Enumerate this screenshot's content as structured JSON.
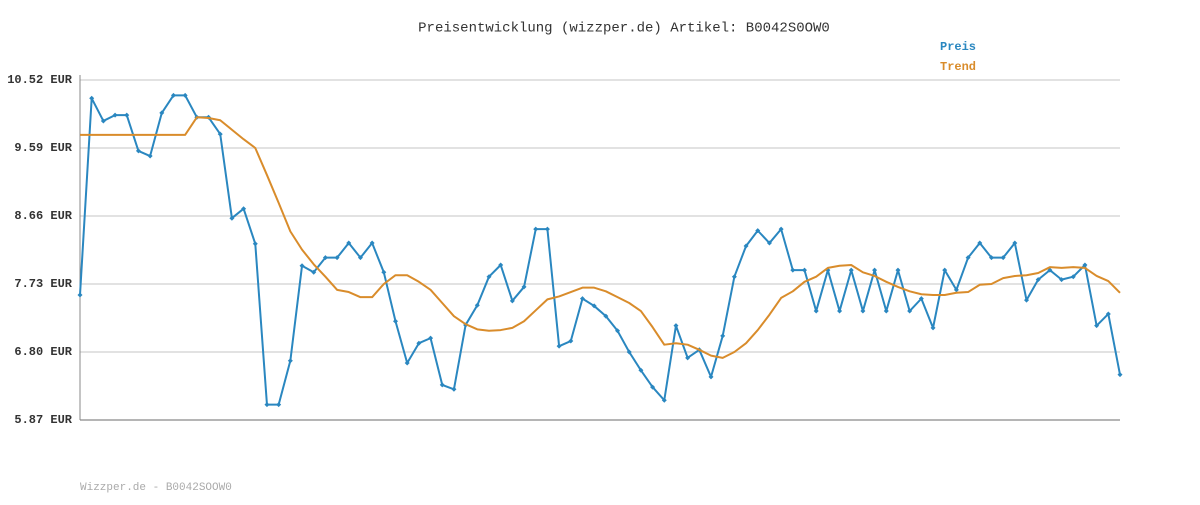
{
  "chart_data": {
    "type": "line",
    "title": "Preisentwicklung (wizzper.de) Artikel: B0042S0OW0",
    "categories": [
      null,
      null,
      null,
      null,
      null,
      null,
      null,
      null,
      null,
      null,
      null,
      null,
      null,
      null,
      null,
      null,
      null,
      null,
      null,
      null,
      null,
      null,
      null,
      null,
      null,
      null,
      null,
      null,
      null,
      null,
      null,
      null,
      null,
      null,
      null,
      null,
      null,
      null,
      null,
      null,
      null,
      null,
      null,
      null,
      null,
      null,
      null,
      null,
      null,
      null,
      null,
      null,
      null,
      null,
      null,
      null,
      null,
      null,
      null,
      null,
      null,
      null,
      null,
      null,
      null,
      null,
      null,
      null,
      null,
      null,
      null,
      null,
      null,
      null,
      null,
      null,
      null,
      null,
      null,
      null,
      null,
      null,
      null,
      null,
      null,
      null,
      null,
      null,
      null,
      null
    ],
    "series": [
      {
        "name": "Preis",
        "color": "#2a87c0",
        "markers": true,
        "values": [
          7.58,
          10.27,
          9.96,
          10.04,
          10.04,
          9.55,
          9.48,
          10.07,
          10.31,
          10.31,
          10.01,
          10.01,
          9.78,
          8.63,
          8.76,
          8.28,
          6.08,
          6.08,
          6.68,
          7.98,
          7.89,
          8.09,
          8.09,
          8.29,
          8.09,
          8.29,
          7.89,
          7.22,
          6.65,
          6.92,
          6.99,
          6.35,
          6.29,
          7.17,
          7.44,
          7.83,
          7.99,
          7.5,
          7.69,
          8.48,
          8.48,
          6.88,
          6.95,
          7.53,
          7.43,
          7.29,
          7.09,
          6.8,
          6.55,
          6.32,
          6.14,
          7.16,
          6.72,
          6.83,
          6.46,
          7.02,
          7.83,
          8.25,
          8.46,
          8.29,
          8.48,
          7.92,
          7.92,
          7.36,
          7.92,
          7.36,
          7.92,
          7.36,
          7.92,
          7.36,
          7.92,
          7.36,
          7.53,
          7.13,
          7.92,
          7.65,
          8.09,
          8.29,
          8.09,
          8.09,
          8.29,
          7.51,
          7.79,
          7.92,
          7.79,
          7.83,
          7.99,
          7.16,
          7.32,
          6.49
        ]
      },
      {
        "name": "Trend",
        "color": "#d98c2b",
        "markers": false,
        "values": [
          9.77,
          9.77,
          9.77,
          9.77,
          9.77,
          9.77,
          9.77,
          9.77,
          9.77,
          9.77,
          10.01,
          10.0,
          9.97,
          9.84,
          9.71,
          9.59,
          9.22,
          8.84,
          8.45,
          8.2,
          8.0,
          7.83,
          7.65,
          7.62,
          7.55,
          7.55,
          7.73,
          7.85,
          7.85,
          7.76,
          7.65,
          7.47,
          7.29,
          7.18,
          7.11,
          7.09,
          7.1,
          7.13,
          7.22,
          7.37,
          7.52,
          7.56,
          7.62,
          7.68,
          7.68,
          7.63,
          7.55,
          7.47,
          7.36,
          7.14,
          6.9,
          6.92,
          6.9,
          6.83,
          6.75,
          6.72,
          6.8,
          6.92,
          7.1,
          7.31,
          7.54,
          7.63,
          7.76,
          7.83,
          7.95,
          7.98,
          7.99,
          7.89,
          7.84,
          7.76,
          7.69,
          7.63,
          7.59,
          7.58,
          7.58,
          7.61,
          7.62,
          7.72,
          7.73,
          7.81,
          7.84,
          7.85,
          7.88,
          7.96,
          7.95,
          7.96,
          7.95,
          7.84,
          7.77,
          7.61
        ]
      }
    ],
    "ylim": [
      5.87,
      10.52
    ],
    "yticks": [
      {
        "value": 5.87,
        "label": "5.87 EUR"
      },
      {
        "value": 6.8,
        "label": "6.80 EUR"
      },
      {
        "value": 7.73,
        "label": "7.73 EUR"
      },
      {
        "value": 8.66,
        "label": "8.66 EUR"
      },
      {
        "value": 9.59,
        "label": "9.59 EUR"
      },
      {
        "value": 10.52,
        "label": "10.52 EUR"
      }
    ],
    "grid": true,
    "legend": "top-right"
  },
  "footer": "Wizzper.de - B0042SOOW0"
}
